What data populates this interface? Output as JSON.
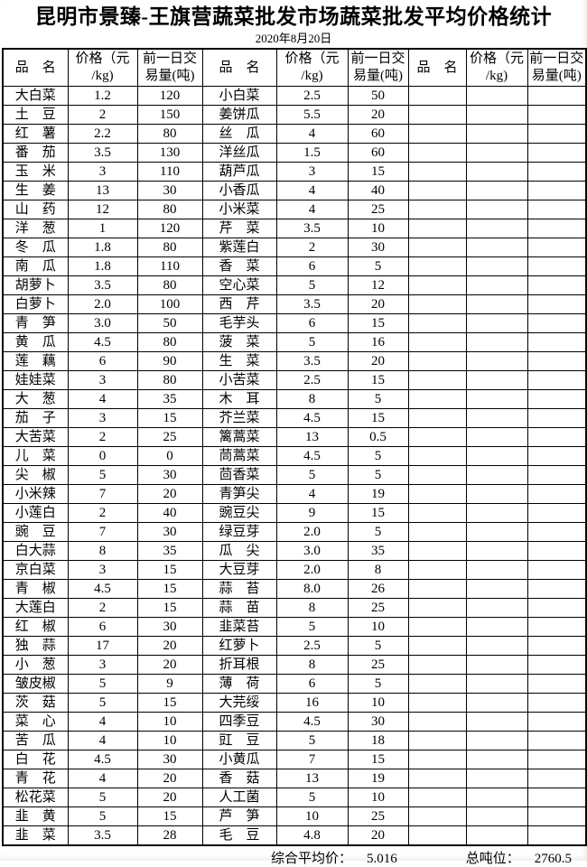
{
  "title": "昆明市景臻-王旗营蔬菜批发市场蔬菜批发平均价格统计",
  "date": "2020年8月20日",
  "columns": {
    "name": "品名",
    "price": "价格（元\n/kg)",
    "volume": "前一日交\n易量(吨)"
  },
  "groups": [
    {
      "rows": [
        [
          "大白菜",
          "1.2",
          "120"
        ],
        [
          "土豆",
          "2",
          "150"
        ],
        [
          "红薯",
          "2.2",
          "80"
        ],
        [
          "番茄",
          "3.5",
          "130"
        ],
        [
          "玉米",
          "3",
          "110"
        ],
        [
          "生姜",
          "13",
          "30"
        ],
        [
          "山药",
          "12",
          "80"
        ],
        [
          "洋葱",
          "1",
          "120"
        ],
        [
          "冬瓜",
          "1.8",
          "80"
        ],
        [
          "南瓜",
          "1.8",
          "110"
        ],
        [
          "胡萝卜",
          "3.5",
          "80"
        ],
        [
          "白萝卜",
          "2.0",
          "100"
        ],
        [
          "青笋",
          "3.0",
          "50"
        ],
        [
          "黄瓜",
          "4.5",
          "80"
        ],
        [
          "莲藕",
          "6",
          "90"
        ],
        [
          "娃娃菜",
          "3",
          "80"
        ],
        [
          "大葱",
          "4",
          "35"
        ],
        [
          "茄子",
          "3",
          "15"
        ],
        [
          "大苦菜",
          "2",
          "25"
        ],
        [
          "儿菜",
          "0",
          "0"
        ],
        [
          "尖椒",
          "5",
          "30"
        ],
        [
          "小米辣",
          "7",
          "20"
        ],
        [
          "小莲白",
          "2",
          "40"
        ],
        [
          "豌豆",
          "7",
          "30"
        ],
        [
          "白大蒜",
          "8",
          "35"
        ],
        [
          "京白菜",
          "3",
          "15"
        ],
        [
          "青椒",
          "4.5",
          "15"
        ],
        [
          "大莲白",
          "2",
          "15"
        ],
        [
          "红椒",
          "6",
          "30"
        ],
        [
          "独蒜",
          "17",
          "20"
        ],
        [
          "小葱",
          "3",
          "20"
        ],
        [
          "皱皮椒",
          "5",
          "9"
        ],
        [
          "茨菇",
          "5",
          "15"
        ],
        [
          "菜心",
          "4",
          "10"
        ],
        [
          "苦瓜",
          "4",
          "10"
        ],
        [
          "白花",
          "4.5",
          "30"
        ],
        [
          "青花",
          "4",
          "20"
        ],
        [
          "松花菜",
          "5",
          "20"
        ],
        [
          "韭黄",
          "5",
          "15"
        ],
        [
          "韭菜",
          "3.5",
          "28"
        ]
      ]
    },
    {
      "rows": [
        [
          "小白菜",
          "2.5",
          "50"
        ],
        [
          "姜饼瓜",
          "5.5",
          "20"
        ],
        [
          "丝瓜",
          "4",
          "60"
        ],
        [
          "洋丝瓜",
          "1.5",
          "60"
        ],
        [
          "葫芦瓜",
          "3",
          "15"
        ],
        [
          "小香瓜",
          "4",
          "40"
        ],
        [
          "小米菜",
          "4",
          "25"
        ],
        [
          "芹菜",
          "3.5",
          "10"
        ],
        [
          "紫莲白",
          "2",
          "30"
        ],
        [
          "香菜",
          "6",
          "5"
        ],
        [
          "空心菜",
          "5",
          "12"
        ],
        [
          "西芹",
          "3.5",
          "20"
        ],
        [
          "毛芋头",
          "6",
          "15"
        ],
        [
          "菠菜",
          "5",
          "16"
        ],
        [
          "生菜",
          "3.5",
          "20"
        ],
        [
          "小苦菜",
          "2.5",
          "15"
        ],
        [
          "木耳",
          "8",
          "5"
        ],
        [
          "芥兰菜",
          "4.5",
          "15"
        ],
        [
          "篱蒿菜",
          "13",
          "0.5"
        ],
        [
          "茼蒿菜",
          "4.5",
          "5"
        ],
        [
          "茴香菜",
          "5",
          "5"
        ],
        [
          "青笋尖",
          "4",
          "19"
        ],
        [
          "豌豆尖",
          "9",
          "15"
        ],
        [
          "绿豆芽",
          "2.0",
          "5"
        ],
        [
          "瓜尖",
          "3.0",
          "35"
        ],
        [
          "大豆芽",
          "2.0",
          "8"
        ],
        [
          "蒜苔",
          "8.0",
          "26"
        ],
        [
          "蒜苗",
          "8",
          "25"
        ],
        [
          "韭菜苔",
          "5",
          "10"
        ],
        [
          "红萝卜",
          "2.5",
          "5"
        ],
        [
          "折耳根",
          "8",
          "25"
        ],
        [
          "薄荷",
          "6",
          "5"
        ],
        [
          "大芫绥",
          "16",
          "10"
        ],
        [
          "四季豆",
          "4.5",
          "30"
        ],
        [
          "豇豆",
          "5",
          "18"
        ],
        [
          "小黄瓜",
          "7",
          "15"
        ],
        [
          "香菇",
          "13",
          "19"
        ],
        [
          "人工菌",
          "5",
          "10"
        ],
        [
          "芦笋",
          "10",
          "25"
        ],
        [
          "毛豆",
          "4.8",
          "20"
        ]
      ]
    },
    {
      "rows": []
    }
  ],
  "row_count": 40,
  "footer": {
    "avg_label": "综合平均价：",
    "avg_value": "5.016",
    "tonnage_label": "总吨位：",
    "tonnage_value": "2760.5"
  }
}
